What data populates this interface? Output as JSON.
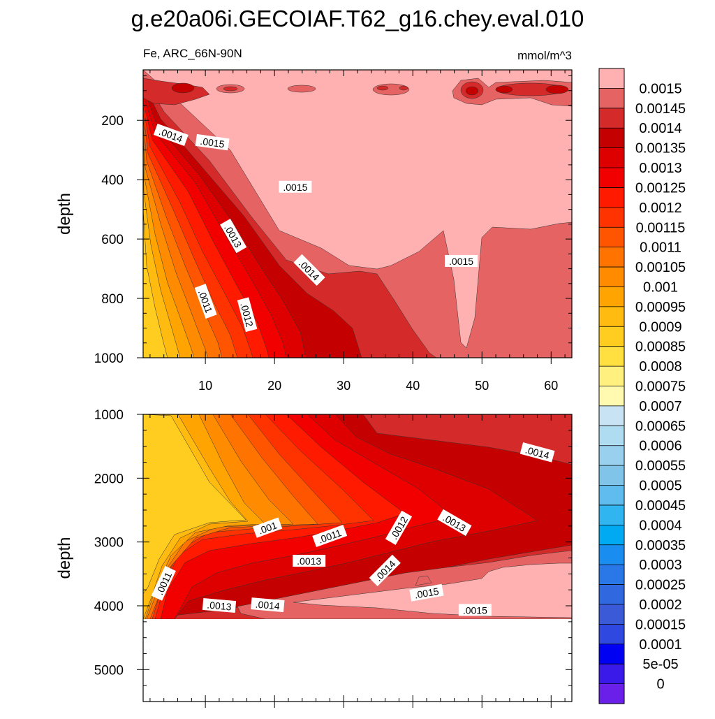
{
  "title": "g.e20a06i.GECOIAF.T62_g16.chey.eval.010",
  "subtitle_left": "Fe, ARC_66N-90N",
  "subtitle_right": "mmol/m^3",
  "chart_data": [
    {
      "type": "heatmap",
      "panel": "upper",
      "variable": "Fe",
      "region": "ARC_66N-90N",
      "units": "mmol/m^3",
      "xlabel": "",
      "ylabel": "depth",
      "xlim": [
        1,
        63
      ],
      "ylim": [
        1000,
        30
      ],
      "y_reversed": true,
      "x_ticks": [
        10,
        20,
        30,
        40,
        50,
        60
      ],
      "y_ticks": [
        200,
        400,
        600,
        800,
        1000
      ],
      "contour_labels": [
        {
          "text": ".0014",
          "x": 5,
          "y": 250,
          "angle": 20
        },
        {
          "text": ".0015",
          "x": 11,
          "y": 275,
          "angle": 8
        },
        {
          "text": ".0015",
          "x": 23,
          "y": 425,
          "angle": 0
        },
        {
          "text": ".0013",
          "x": 14,
          "y": 590,
          "angle": 60
        },
        {
          "text": ".0014",
          "x": 25,
          "y": 705,
          "angle": 45
        },
        {
          "text": ".0015",
          "x": 47,
          "y": 675,
          "angle": 0
        },
        {
          "text": ".0011",
          "x": 10,
          "y": 810,
          "angle": 70
        },
        {
          "text": ".0012",
          "x": 16,
          "y": 855,
          "angle": 75
        }
      ]
    },
    {
      "type": "heatmap",
      "panel": "lower",
      "variable": "Fe",
      "region": "ARC_66N-90N",
      "units": "mmol/m^3",
      "xlabel": "",
      "ylabel": "depth",
      "xlim": [
        1,
        63
      ],
      "ylim": [
        5500,
        1000
      ],
      "y_reversed": true,
      "data_max_depth": 4130,
      "y_ticks": [
        1000,
        2000,
        3000,
        4000,
        5000
      ],
      "contour_labels": [
        {
          "text": ".001",
          "x": 19,
          "y": 2780,
          "angle": -20
        },
        {
          "text": ".0011",
          "x": 28,
          "y": 2910,
          "angle": -20
        },
        {
          "text": ".0012",
          "x": 38,
          "y": 2780,
          "angle": -60
        },
        {
          "text": ".0013",
          "x": 46,
          "y": 2700,
          "angle": 30
        },
        {
          "text": ".0013",
          "x": 25,
          "y": 3300,
          "angle": 0
        },
        {
          "text": ".0014",
          "x": 58,
          "y": 1600,
          "angle": 15
        },
        {
          "text": ".0014",
          "x": 36,
          "y": 3450,
          "angle": -45
        },
        {
          "text": ".0015",
          "x": 42,
          "y": 3800,
          "angle": -10
        },
        {
          "text": ".0015",
          "x": 49,
          "y": 4070,
          "angle": 0
        },
        {
          "text": ".0011",
          "x": 4,
          "y": 3650,
          "angle": -65
        },
        {
          "text": ".0013",
          "x": 12,
          "y": 4000,
          "angle": 5
        },
        {
          "text": ".0014",
          "x": 19,
          "y": 3990,
          "angle": 5
        }
      ]
    }
  ],
  "colorbar": {
    "labels": [
      "0.0015",
      "0.00145",
      "0.0014",
      "0.00135",
      "0.0013",
      "0.00125",
      "0.0012",
      "0.00115",
      "0.0011",
      "0.00105",
      "0.001",
      "0.00095",
      "0.0009",
      "0.00085",
      "0.0008",
      "0.00075",
      "0.0007",
      "0.00065",
      "0.0006",
      "0.00055",
      "0.0005",
      "0.00045",
      "0.0004",
      "0.00035",
      "0.0003",
      "0.00025",
      "0.0002",
      "0.00015",
      "0.0001",
      "5e-05",
      "0"
    ],
    "colors": [
      "#ffb0b0",
      "#e66363",
      "#d42a2a",
      "#c40000",
      "#de0000",
      "#f20000",
      "#ff1a00",
      "#ff3300",
      "#ff5500",
      "#ff7300",
      "#ff8c00",
      "#ffa400",
      "#ffbb10",
      "#ffcc20",
      "#ffe040",
      "#fff080",
      "#fffab0",
      "#c8e4f4",
      "#b0dcf2",
      "#98d0ee",
      "#80c4ea",
      "#60bbee",
      "#30b5f0",
      "#00aaf2",
      "#1a8ef0",
      "#2a78e8",
      "#3068e0",
      "#3a5ad8",
      "#2f48e0",
      "#0000f2",
      "#3a1ae8",
      "#6a20e8"
    ]
  }
}
